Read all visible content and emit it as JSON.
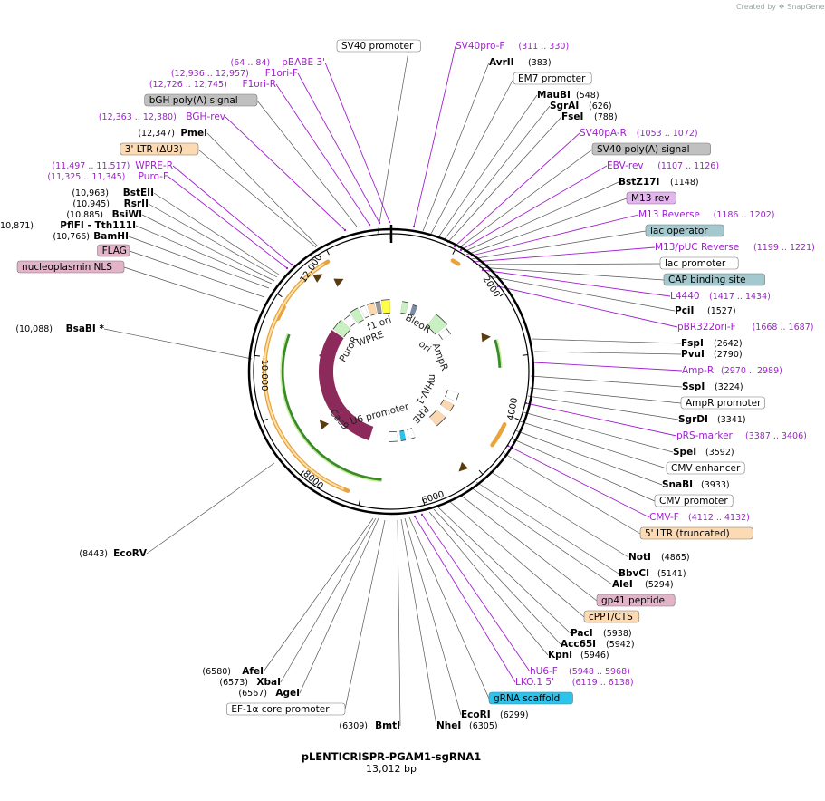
{
  "credit": "Created by ❖ SnapGene",
  "plasmid": {
    "name": "pLENTICRISPR-PGAM1-sgRNA1",
    "length": "13,012 bp"
  },
  "colors": {
    "primer": "#a020d0",
    "enzyme": "#000000"
  },
  "scale_labels": [
    "2000",
    "4000",
    "6000",
    "8000",
    "10,000",
    "12,000"
  ],
  "labels": [
    {
      "kind": "box",
      "text": "SV40 promoter",
      "fill": "#ffffff"
    },
    {
      "kind": "primer",
      "text": "SV40pro-F",
      "pos": "(311 .. 330)"
    },
    {
      "kind": "enzyme",
      "text": "AvrII",
      "pos": "(383)"
    },
    {
      "kind": "box",
      "text": "EM7 promoter",
      "fill": "#ffffff"
    },
    {
      "kind": "enzyme",
      "text": "MauBI",
      "pos": "(548)"
    },
    {
      "kind": "enzyme",
      "text": "SgrAI",
      "pos": "(626)"
    },
    {
      "kind": "enzyme",
      "text": "FseI",
      "pos": "(788)"
    },
    {
      "kind": "primer",
      "text": "SV40pA-R",
      "pos": "(1053 .. 1072)"
    },
    {
      "kind": "box",
      "text": "SV40 poly(A) signal",
      "fill": "#c0c0c0"
    },
    {
      "kind": "primer",
      "text": "EBV-rev",
      "pos": "(1107 .. 1126)"
    },
    {
      "kind": "enzyme",
      "text": "BstZ17I",
      "pos": "(1148)"
    },
    {
      "kind": "box",
      "text": "M13 rev",
      "fill": "#e4b4ee"
    },
    {
      "kind": "primer",
      "text": "M13 Reverse",
      "pos": "(1186 .. 1202)"
    },
    {
      "kind": "box",
      "text": "lac operator",
      "fill": "#a3c8ce"
    },
    {
      "kind": "primer",
      "text": "M13/pUC Reverse",
      "pos": "(1199 .. 1221)"
    },
    {
      "kind": "box",
      "text": "lac promoter",
      "fill": "#ffffff"
    },
    {
      "kind": "box",
      "text": "CAP binding site",
      "fill": "#a3c8ce"
    },
    {
      "kind": "primer",
      "text": "L4440",
      "pos": "(1417 .. 1434)"
    },
    {
      "kind": "enzyme",
      "text": "PciI",
      "pos": "(1527)"
    },
    {
      "kind": "primer",
      "text": "pBR322ori-F",
      "pos": "(1668 .. 1687)"
    },
    {
      "kind": "enzyme",
      "text": "FspI",
      "pos": "(2642)"
    },
    {
      "kind": "enzyme",
      "text": "PvuI",
      "pos": "(2790)"
    },
    {
      "kind": "primer",
      "text": "Amp-R",
      "pos": "(2970 .. 2989)"
    },
    {
      "kind": "enzyme",
      "text": "SspI",
      "pos": "(3224)"
    },
    {
      "kind": "box",
      "text": "AmpR promoter",
      "fill": "#ffffff"
    },
    {
      "kind": "enzyme",
      "text": "SgrDI",
      "pos": "(3341)"
    },
    {
      "kind": "primer",
      "text": "pRS-marker",
      "pos": "(3387 .. 3406)"
    },
    {
      "kind": "enzyme",
      "text": "SpeI",
      "pos": "(3592)"
    },
    {
      "kind": "box",
      "text": "CMV enhancer",
      "fill": "#ffffff"
    },
    {
      "kind": "enzyme",
      "text": "SnaBI",
      "pos": "(3933)"
    },
    {
      "kind": "box",
      "text": "CMV promoter",
      "fill": "#ffffff"
    },
    {
      "kind": "primer",
      "text": "CMV-F",
      "pos": "(4112 .. 4132)"
    },
    {
      "kind": "box",
      "text": "5' LTR (truncated)",
      "fill": "#fcdab4"
    },
    {
      "kind": "enzyme",
      "text": "NotI",
      "pos": "(4865)"
    },
    {
      "kind": "enzyme",
      "text": "BbvCI",
      "pos": "(5141)"
    },
    {
      "kind": "enzyme",
      "text": "AleI",
      "pos": "(5294)"
    },
    {
      "kind": "box",
      "text": "gp41 peptide",
      "fill": "#e2b4c8"
    },
    {
      "kind": "box",
      "text": "cPPT/CTS",
      "fill": "#fcdab4"
    },
    {
      "kind": "enzyme",
      "text": "PacI",
      "pos": "(5938)"
    },
    {
      "kind": "enzyme",
      "text": "Acc65I",
      "pos": "(5942)"
    },
    {
      "kind": "enzyme",
      "text": "KpnI",
      "pos": "(5946)"
    },
    {
      "kind": "primer",
      "text": "hU6-F",
      "pos": "(5948 .. 5968)"
    },
    {
      "kind": "primer",
      "text": "LKO.1 5'",
      "pos": "(6119 .. 6138)"
    },
    {
      "kind": "box",
      "text": "gRNA scaffold",
      "fill": "#2bc4ec"
    },
    {
      "kind": "enzyme",
      "text": "EcoRI",
      "pos": "(6299)"
    },
    {
      "kind": "enzyme",
      "text": "NheI",
      "pos": "(6305)"
    },
    {
      "kind": "enzyme",
      "text": "BmtI",
      "pos": "(6309)"
    },
    {
      "kind": "box",
      "text": "EF-1α core promoter",
      "fill": "#ffffff"
    },
    {
      "kind": "enzyme",
      "text": "AgeI",
      "pos": "(6567)"
    },
    {
      "kind": "enzyme",
      "text": "XbaI",
      "pos": "(6573)"
    },
    {
      "kind": "enzyme",
      "text": "AfeI",
      "pos": "(6580)"
    },
    {
      "kind": "enzyme",
      "text": "EcoRV",
      "pos": "(8443)"
    },
    {
      "kind": "enzyme",
      "text": "BsaBI *",
      "pos": "(10,088)"
    },
    {
      "kind": "box",
      "text": "nucleoplasmin NLS",
      "fill": "#e2b4c8"
    },
    {
      "kind": "box",
      "text": "FLAG",
      "fill": "#e2b4c8"
    },
    {
      "kind": "enzyme",
      "text": "BamHI",
      "pos": "(10,766)"
    },
    {
      "kind": "enzyme",
      "text": "PflFI - Tth111I",
      "pos": "(10,871)"
    },
    {
      "kind": "enzyme",
      "text": "BsiWI",
      "pos": "(10,885)"
    },
    {
      "kind": "enzyme",
      "text": "RsrII",
      "pos": "(10,945)"
    },
    {
      "kind": "enzyme",
      "text": "BstEII",
      "pos": "(10,963)"
    },
    {
      "kind": "primer",
      "text": "Puro-F",
      "pos": "(11,325 .. 11,345)"
    },
    {
      "kind": "primer",
      "text": "WPRE-R",
      "pos": "(11,497 .. 11,517)"
    },
    {
      "kind": "box",
      "text": "3' LTR (ΔU3)",
      "fill": "#fcdab4"
    },
    {
      "kind": "enzyme",
      "text": "PmeI",
      "pos": "(12,347)"
    },
    {
      "kind": "primer",
      "text": "BGH-rev",
      "pos": "(12,363 .. 12,380)"
    },
    {
      "kind": "box",
      "text": "bGH poly(A) signal",
      "fill": "#c0c0c0"
    },
    {
      "kind": "primer",
      "text": "F1ori-R",
      "pos": "(12,726 .. 12,745)"
    },
    {
      "kind": "primer",
      "text": "F1ori-F",
      "pos": "(12,936 .. 12,957)"
    },
    {
      "kind": "primer",
      "text": "pBABE 3'",
      "pos": "(64 .. 84)"
    }
  ],
  "inner_labels": [
    "f1 ori",
    "WPRE",
    "PuroR",
    "BleoR",
    "ori",
    "AmpR",
    "m",
    "HIV-1",
    "RRE",
    "U6 promoter",
    "Cas9"
  ]
}
